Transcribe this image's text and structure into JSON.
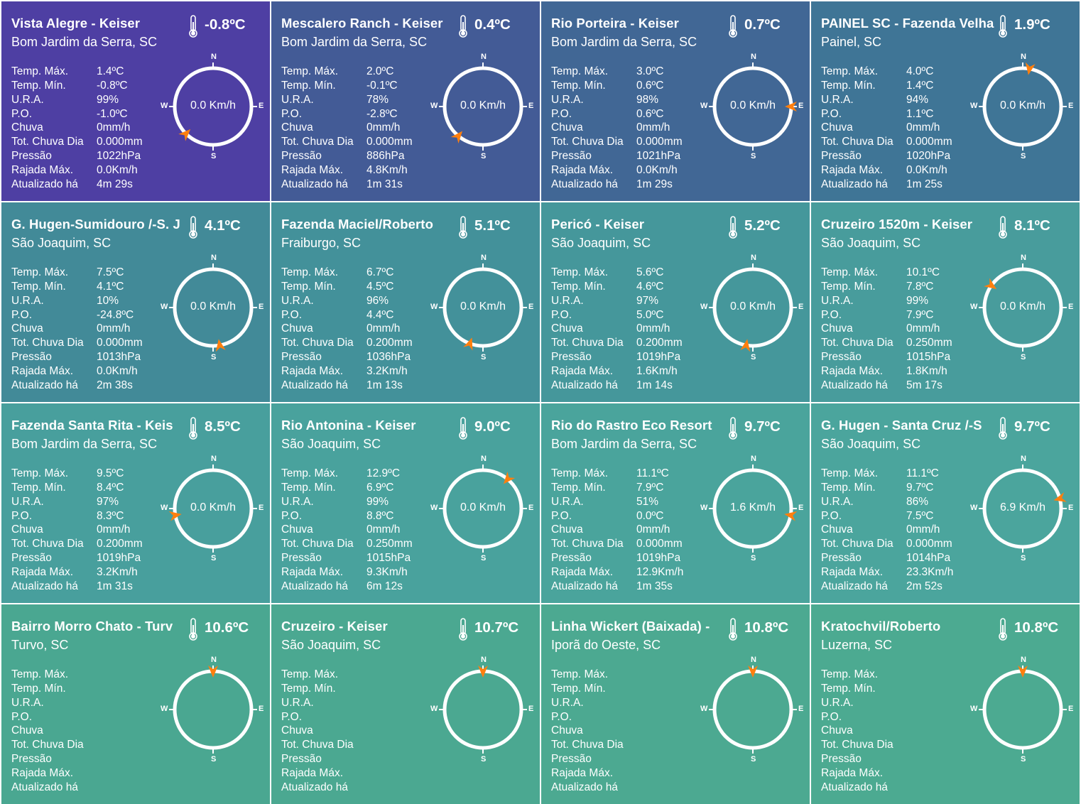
{
  "units": {
    "label_n": "N",
    "label_s": "S",
    "label_w": "W",
    "label_e": "E"
  },
  "icons": {
    "thermometer": "thermometer-icon",
    "wind_arrow": "wind-direction-arrow-icon"
  },
  "colors": {
    "accent_arrow": "#ff7f0e",
    "ring": "#ffffff"
  },
  "stat_labels": [
    "Temp. Máx.",
    "Temp. Mín.",
    "U.R.A.",
    "P.O.",
    "Chuva",
    "Tot. Chuva Dia",
    "Pressão",
    "Rajada Máx.",
    "Atualizado há"
  ],
  "stations": [
    {
      "name": "Vista Alegre - Keiser",
      "city": "Bom Jardim da Serra, SC",
      "temp": "-0.8ºC",
      "wind_speed": "0.0 Km/h",
      "wind_dir_deg": 225,
      "bg": "#4e3fa3",
      "stats": [
        "1.4ºC",
        "-0.8ºC",
        "99%",
        "-1.0ºC",
        "0mm/h",
        "0.000mm",
        "1022hPa",
        "0.0Km/h",
        "4m 29s"
      ]
    },
    {
      "name": "Mescalero Ranch - Keiser",
      "city": "Bom Jardim da Serra, SC",
      "temp": "0.4ºC",
      "wind_speed": "0.0 Km/h",
      "wind_dir_deg": 220,
      "bg": "#435b96",
      "stats": [
        "2.0ºC",
        "-0.1ºC",
        "78%",
        "-2.8ºC",
        "0mm/h",
        "0.000mm",
        "886hPa",
        "4.8Km/h",
        "1m 31s"
      ]
    },
    {
      "name": "Rio Porteira - Keiser",
      "city": "Bom Jardim da Serra, SC",
      "temp": "0.7ºC",
      "wind_speed": "0.0 Km/h",
      "wind_dir_deg": 90,
      "bg": "#416795",
      "stats": [
        "3.0ºC",
        "0.6ºC",
        "98%",
        "0.6ºC",
        "0mm/h",
        "0.000mm",
        "1021hPa",
        "0.0Km/h",
        "1m 29s"
      ]
    },
    {
      "name": "PAINEL SC - Fazenda Velha",
      "city": "Painel, SC",
      "temp": "1.9ºC",
      "wind_speed": "0.0 Km/h",
      "wind_dir_deg": 10,
      "bg": "#3f7596",
      "stats": [
        "4.0ºC",
        "1.4ºC",
        "94%",
        "1.1ºC",
        "0mm/h",
        "0.000mm",
        "1020hPa",
        "0.0Km/h",
        "1m 25s"
      ]
    },
    {
      "name": "G. Hugen-Sumidouro /-S. J",
      "city": "São Joaquim, SC",
      "temp": "4.1ºC",
      "wind_speed": "0.0 Km/h",
      "wind_dir_deg": 170,
      "bg": "#428a98",
      "stats": [
        "7.5ºC",
        "4.1ºC",
        "10%",
        "-24.8ºC",
        "0mm/h",
        "0.000mm",
        "1013hPa",
        "0.0Km/h",
        "2m 38s"
      ]
    },
    {
      "name": "Fazenda Maciel/Roberto",
      "city": "Fraiburgo, SC",
      "temp": "5.1ºC",
      "wind_speed": "0.0 Km/h",
      "wind_dir_deg": 200,
      "bg": "#43919a",
      "stats": [
        "6.7ºC",
        "4.5ºC",
        "96%",
        "4.4ºC",
        "0mm/h",
        "0.200mm",
        "1036hPa",
        "3.2Km/h",
        "1m 13s"
      ]
    },
    {
      "name": "Pericó - Keiser",
      "city": "São Joaquim, SC",
      "temp": "5.2ºC",
      "wind_speed": "0.0 Km/h",
      "wind_dir_deg": 190,
      "bg": "#45979b",
      "stats": [
        "5.6ºC",
        "4.6ºC",
        "97%",
        "5.0ºC",
        "0mm/h",
        "0.200mm",
        "1019hPa",
        "1.6Km/h",
        "1m 14s"
      ]
    },
    {
      "name": "Cruzeiro 1520m - Keiser",
      "city": "São Joaquim, SC",
      "temp": "8.1ºC",
      "wind_speed": "0.0 Km/h",
      "wind_dir_deg": 305,
      "bg": "#489c9c",
      "stats": [
        "10.1ºC",
        "7.8ºC",
        "99%",
        "7.9ºC",
        "0mm/h",
        "0.250mm",
        "1015hPa",
        "1.8Km/h",
        "5m 17s"
      ]
    },
    {
      "name": "Fazenda Santa Rita - Keis",
      "city": "Bom Jardim da Serra, SC",
      "temp": "8.5ºC",
      "wind_speed": "0.0 Km/h",
      "wind_dir_deg": 260,
      "bg": "#489f9d",
      "stats": [
        "9.5ºC",
        "8.4ºC",
        "97%",
        "8.3ºC",
        "0mm/h",
        "0.200mm",
        "1019hPa",
        "3.2Km/h",
        "1m 31s"
      ]
    },
    {
      "name": "Rio Antonina - Keiser",
      "city": "São Joaquim, SC",
      "temp": "9.0ºC",
      "wind_speed": "0.0 Km/h",
      "wind_dir_deg": 40,
      "bg": "#49a29d",
      "stats": [
        "12.9ºC",
        "6.9ºC",
        "99%",
        "8.8ºC",
        "0mm/h",
        "0.250mm",
        "1015hPa",
        "9.3Km/h",
        "6m 12s"
      ]
    },
    {
      "name": "Rio do Rastro Eco Resort",
      "city": "Bom Jardim da Serra, SC",
      "temp": "9.7ºC",
      "wind_speed": "1.6 Km/h",
      "wind_dir_deg": 100,
      "bg": "#4aa49c",
      "stats": [
        "11.1ºC",
        "7.9ºC",
        "51%",
        "0.0ºC",
        "0mm/h",
        "0.000mm",
        "1019hPa",
        "12.9Km/h",
        "1m 35s"
      ]
    },
    {
      "name": "G. Hugen - Santa Cruz /-S",
      "city": "São Joaquim, SC",
      "temp": "9.7ºC",
      "wind_speed": "6.9 Km/h",
      "wind_dir_deg": 75,
      "bg": "#4ba59d",
      "stats": [
        "11.1ºC",
        "9.7ºC",
        "86%",
        "7.5ºC",
        "0mm/h",
        "0.000mm",
        "1014hPa",
        "23.3Km/h",
        "2m 52s"
      ]
    },
    {
      "name": "Bairro Morro Chato - Turv",
      "city": "Turvo, SC",
      "temp": "10.6ºC",
      "wind_speed": "",
      "wind_dir_deg": 0,
      "bg": "#4aa791",
      "stats": [
        "",
        "",
        "",
        "",
        "",
        "",
        "",
        "",
        ""
      ]
    },
    {
      "name": "Cruzeiro - Keiser",
      "city": "São Joaquim, SC",
      "temp": "10.7ºC",
      "wind_speed": "",
      "wind_dir_deg": 0,
      "bg": "#4ba891",
      "stats": [
        "",
        "",
        "",
        "",
        "",
        "",
        "",
        "",
        ""
      ]
    },
    {
      "name": "Linha Wickert (Baixada) -",
      "city": "Iporã do Oeste, SC",
      "temp": "10.8ºC",
      "wind_speed": "",
      "wind_dir_deg": 0,
      "bg": "#4ca991",
      "stats": [
        "",
        "",
        "",
        "",
        "",
        "",
        "",
        "",
        ""
      ]
    },
    {
      "name": "Kratochvil/Roberto",
      "city": "Luzerna, SC",
      "temp": "10.8ºC",
      "wind_speed": "",
      "wind_dir_deg": 0,
      "bg": "#4caa91",
      "stats": [
        "",
        "",
        "",
        "",
        "",
        "",
        "",
        "",
        ""
      ]
    }
  ]
}
